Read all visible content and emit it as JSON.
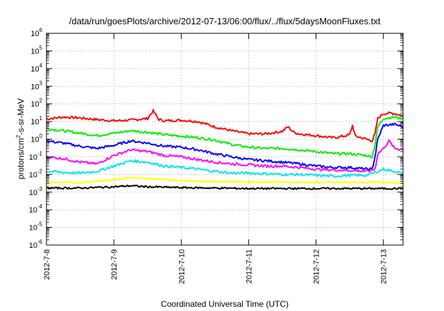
{
  "chart_data": {
    "type": "line",
    "title": "/data/run/goesPlots/archive/2012-07-13/06:00/flux/../flux/5daysMoonFluxes.txt",
    "xlabel": "Coordinated Universal Time (UTC)",
    "ylabel": "protons/cm2-s-sr-MeV",
    "ylabel_parts": {
      "pre": "protons/cm",
      "sup": "2",
      "post": "-s-sr-MeV"
    },
    "yscale": "log",
    "ylim_exp": [
      -6,
      6
    ],
    "y_ticks": [
      {
        "base": "10",
        "exp": "-6"
      },
      {
        "base": "10",
        "exp": "-5"
      },
      {
        "base": "10",
        "exp": "-4"
      },
      {
        "base": "10",
        "exp": "-3"
      },
      {
        "base": "10",
        "exp": "-2"
      },
      {
        "base": "10",
        "exp": "-1"
      },
      {
        "base": "10",
        "exp": "0"
      },
      {
        "base": "10",
        "exp": "1"
      },
      {
        "base": "10",
        "exp": "2"
      },
      {
        "base": "10",
        "exp": "3"
      },
      {
        "base": "10",
        "exp": "4"
      },
      {
        "base": "10",
        "exp": "5"
      },
      {
        "base": "10",
        "exp": "6"
      }
    ],
    "x_ticks": [
      "2012-7-8",
      "2012-7-9",
      "2012-7-10",
      "2012-7-11",
      "2012-7-12",
      "2012-7-13"
    ],
    "xlim": [
      "2012-07-08 00:00",
      "2012-07-13 07:00"
    ],
    "grid": true,
    "series": [
      {
        "color": "#ff0000",
        "points": [
          [
            "2012-07-08 00:00",
            14
          ],
          [
            "2012-07-08 06:00",
            18
          ],
          [
            "2012-07-08 12:00",
            16
          ],
          [
            "2012-07-08 18:00",
            13
          ],
          [
            "2012-07-09 00:00",
            11
          ],
          [
            "2012-07-09 06:00",
            12
          ],
          [
            "2012-07-09 12:00",
            15
          ],
          [
            "2012-07-09 14:00",
            40
          ],
          [
            "2012-07-09 16:00",
            13
          ],
          [
            "2012-07-09 18:00",
            11
          ],
          [
            "2012-07-10 00:00",
            12
          ],
          [
            "2012-07-10 06:00",
            10
          ],
          [
            "2012-07-10 12:00",
            5
          ],
          [
            "2012-07-10 18:00",
            3
          ],
          [
            "2012-07-11 00:00",
            2
          ],
          [
            "2012-07-11 06:00",
            2
          ],
          [
            "2012-07-11 12:00",
            2.8
          ],
          [
            "2012-07-11 14:00",
            5
          ],
          [
            "2012-07-11 16:00",
            2.5
          ],
          [
            "2012-07-11 18:00",
            2
          ],
          [
            "2012-07-12 00:00",
            1.6
          ],
          [
            "2012-07-12 06:00",
            1.2
          ],
          [
            "2012-07-12 10:00",
            1.5
          ],
          [
            "2012-07-12 12:00",
            1.8
          ],
          [
            "2012-07-12 13:00",
            6
          ],
          [
            "2012-07-12 14:00",
            1.5
          ],
          [
            "2012-07-12 18:00",
            1
          ],
          [
            "2012-07-12 20:00",
            0.8
          ],
          [
            "2012-07-12 21:00",
            2
          ],
          [
            "2012-07-12 22:00",
            15
          ],
          [
            "2012-07-13 00:00",
            28
          ],
          [
            "2012-07-13 03:00",
            30
          ],
          [
            "2012-07-13 07:00",
            22
          ]
        ]
      },
      {
        "color": "#00ee00",
        "points": [
          [
            "2012-07-08 00:00",
            4
          ],
          [
            "2012-07-08 06:00",
            3
          ],
          [
            "2012-07-08 12:00",
            2.2
          ],
          [
            "2012-07-08 18:00",
            1.6
          ],
          [
            "2012-07-09 00:00",
            2.2
          ],
          [
            "2012-07-09 06:00",
            3
          ],
          [
            "2012-07-09 12:00",
            2.5
          ],
          [
            "2012-07-09 18:00",
            1.8
          ],
          [
            "2012-07-10 00:00",
            1.5
          ],
          [
            "2012-07-10 06:00",
            1.2
          ],
          [
            "2012-07-10 12:00",
            0.9
          ],
          [
            "2012-07-10 18:00",
            0.5
          ],
          [
            "2012-07-11 00:00",
            0.35
          ],
          [
            "2012-07-11 06:00",
            0.3
          ],
          [
            "2012-07-11 12:00",
            0.3
          ],
          [
            "2012-07-11 18:00",
            0.25
          ],
          [
            "2012-07-12 00:00",
            0.2
          ],
          [
            "2012-07-12 06:00",
            0.15
          ],
          [
            "2012-07-12 12:00",
            0.15
          ],
          [
            "2012-07-12 18:00",
            0.12
          ],
          [
            "2012-07-12 20:00",
            0.1
          ],
          [
            "2012-07-12 21:00",
            0.5
          ],
          [
            "2012-07-12 22:00",
            5
          ],
          [
            "2012-07-13 00:00",
            15
          ],
          [
            "2012-07-13 04:00",
            18
          ],
          [
            "2012-07-13 07:00",
            14
          ]
        ]
      },
      {
        "color": "#0000ff",
        "points": [
          [
            "2012-07-08 00:00",
            0.8
          ],
          [
            "2012-07-08 06:00",
            0.6
          ],
          [
            "2012-07-08 12:00",
            0.4
          ],
          [
            "2012-07-08 18:00",
            0.3
          ],
          [
            "2012-07-09 00:00",
            0.45
          ],
          [
            "2012-07-09 06:00",
            0.8
          ],
          [
            "2012-07-09 12:00",
            0.6
          ],
          [
            "2012-07-09 18:00",
            0.4
          ],
          [
            "2012-07-10 00:00",
            0.35
          ],
          [
            "2012-07-10 06:00",
            0.25
          ],
          [
            "2012-07-10 12:00",
            0.15
          ],
          [
            "2012-07-10 18:00",
            0.1
          ],
          [
            "2012-07-11 00:00",
            0.07
          ],
          [
            "2012-07-11 06:00",
            0.06
          ],
          [
            "2012-07-11 12:00",
            0.05
          ],
          [
            "2012-07-11 18:00",
            0.04
          ],
          [
            "2012-07-12 00:00",
            0.03
          ],
          [
            "2012-07-12 06:00",
            0.025
          ],
          [
            "2012-07-12 12:00",
            0.025
          ],
          [
            "2012-07-12 18:00",
            0.02
          ],
          [
            "2012-07-12 20:00",
            0.02
          ],
          [
            "2012-07-12 21:00",
            0.1
          ],
          [
            "2012-07-12 22:00",
            1
          ],
          [
            "2012-07-13 00:00",
            6
          ],
          [
            "2012-07-13 04:00",
            7
          ],
          [
            "2012-07-13 07:00",
            5
          ]
        ]
      },
      {
        "color": "#ff00ff",
        "points": [
          [
            "2012-07-08 00:00",
            0.1
          ],
          [
            "2012-07-08 06:00",
            0.08
          ],
          [
            "2012-07-08 12:00",
            0.05
          ],
          [
            "2012-07-08 18:00",
            0.04
          ],
          [
            "2012-07-09 00:00",
            0.12
          ],
          [
            "2012-07-09 06:00",
            0.25
          ],
          [
            "2012-07-09 12:00",
            0.2
          ],
          [
            "2012-07-09 18:00",
            0.12
          ],
          [
            "2012-07-10 00:00",
            0.1
          ],
          [
            "2012-07-10 06:00",
            0.07
          ],
          [
            "2012-07-10 12:00",
            0.05
          ],
          [
            "2012-07-10 18:00",
            0.04
          ],
          [
            "2012-07-11 00:00",
            0.035
          ],
          [
            "2012-07-11 06:00",
            0.03
          ],
          [
            "2012-07-11 12:00",
            0.03
          ],
          [
            "2012-07-11 18:00",
            0.025
          ],
          [
            "2012-07-12 00:00",
            0.02
          ],
          [
            "2012-07-12 06:00",
            0.018
          ],
          [
            "2012-07-12 12:00",
            0.017
          ],
          [
            "2012-07-12 18:00",
            0.015
          ],
          [
            "2012-07-12 21:00",
            0.02
          ],
          [
            "2012-07-12 22:00",
            0.15
          ],
          [
            "2012-07-13 00:00",
            0.3
          ],
          [
            "2012-07-13 02:00",
            0.8
          ],
          [
            "2012-07-13 04:00",
            0.3
          ],
          [
            "2012-07-13 07:00",
            0.25
          ]
        ]
      },
      {
        "color": "#00e5ee",
        "points": [
          [
            "2012-07-08 00:00",
            0.015
          ],
          [
            "2012-07-08 06:00",
            0.013
          ],
          [
            "2012-07-08 12:00",
            0.012
          ],
          [
            "2012-07-08 18:00",
            0.015
          ],
          [
            "2012-07-09 00:00",
            0.03
          ],
          [
            "2012-07-09 06:00",
            0.06
          ],
          [
            "2012-07-09 12:00",
            0.05
          ],
          [
            "2012-07-09 18:00",
            0.03
          ],
          [
            "2012-07-10 00:00",
            0.025
          ],
          [
            "2012-07-10 06:00",
            0.02
          ],
          [
            "2012-07-10 12:00",
            0.015
          ],
          [
            "2012-07-10 18:00",
            0.012
          ],
          [
            "2012-07-11 00:00",
            0.012
          ],
          [
            "2012-07-11 06:00",
            0.011
          ],
          [
            "2012-07-11 12:00",
            0.01
          ],
          [
            "2012-07-11 18:00",
            0.01
          ],
          [
            "2012-07-12 00:00",
            0.009
          ],
          [
            "2012-07-12 06:00",
            0.008
          ],
          [
            "2012-07-12 12:00",
            0.009
          ],
          [
            "2012-07-12 18:00",
            0.009
          ],
          [
            "2012-07-12 22:00",
            0.015
          ],
          [
            "2012-07-13 00:00",
            0.02
          ],
          [
            "2012-07-13 04:00",
            0.015
          ],
          [
            "2012-07-13 07:00",
            0.011
          ]
        ]
      },
      {
        "color": "#ffff00",
        "points": [
          [
            "2012-07-08 00:00",
            0.0035
          ],
          [
            "2012-07-08 12:00",
            0.0035
          ],
          [
            "2012-07-09 00:00",
            0.005
          ],
          [
            "2012-07-09 06:00",
            0.007
          ],
          [
            "2012-07-09 12:00",
            0.006
          ],
          [
            "2012-07-09 18:00",
            0.005
          ],
          [
            "2012-07-10 00:00",
            0.0045
          ],
          [
            "2012-07-10 12:00",
            0.004
          ],
          [
            "2012-07-11 00:00",
            0.0038
          ],
          [
            "2012-07-11 12:00",
            0.0037
          ],
          [
            "2012-07-12 00:00",
            0.0036
          ],
          [
            "2012-07-12 12:00",
            0.0036
          ],
          [
            "2012-07-13 00:00",
            0.0036
          ],
          [
            "2012-07-13 07:00",
            0.0035
          ]
        ]
      },
      {
        "color": "#000000",
        "points": [
          [
            "2012-07-08 00:00",
            0.0017
          ],
          [
            "2012-07-08 12:00",
            0.0017
          ],
          [
            "2012-07-09 00:00",
            0.002
          ],
          [
            "2012-07-09 06:00",
            0.0023
          ],
          [
            "2012-07-09 12:00",
            0.002
          ],
          [
            "2012-07-10 00:00",
            0.0018
          ],
          [
            "2012-07-10 12:00",
            0.0017
          ],
          [
            "2012-07-11 00:00",
            0.0016
          ],
          [
            "2012-07-11 12:00",
            0.0016
          ],
          [
            "2012-07-12 00:00",
            0.0016
          ],
          [
            "2012-07-12 12:00",
            0.0016
          ],
          [
            "2012-07-13 00:00",
            0.0016
          ],
          [
            "2012-07-13 07:00",
            0.0016
          ]
        ]
      }
    ]
  }
}
